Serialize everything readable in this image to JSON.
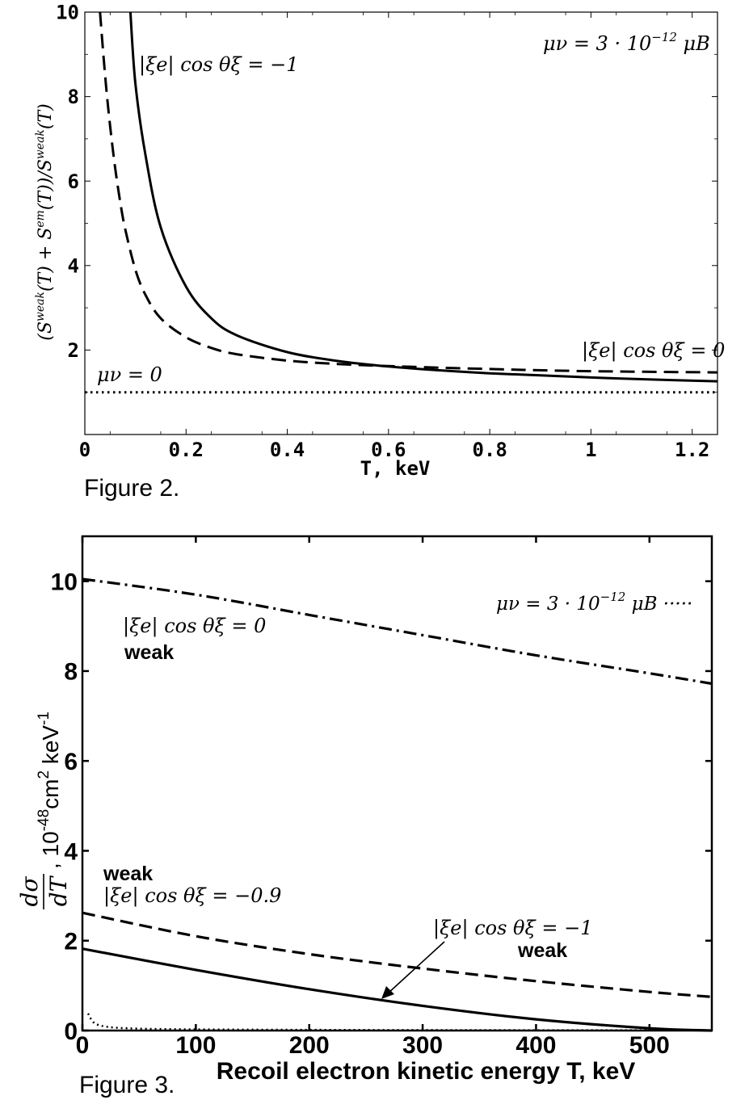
{
  "figures": [
    {
      "caption": "Figure 2.",
      "chart_data": {
        "type": "line",
        "title": "",
        "xlabel": "T, keV",
        "ylabel": "(S^weak(T) + S^em(T))/S^weak(T)",
        "xlim": [
          0,
          1.25
        ],
        "ylim": [
          0,
          10
        ],
        "x_ticks": [
          {
            "v": 0,
            "label": "0"
          },
          {
            "v": 0.2,
            "label": "0.2"
          },
          {
            "v": 0.4,
            "label": "0.4"
          },
          {
            "v": 0.6,
            "label": "0.6"
          },
          {
            "v": 0.8,
            "label": "0.8"
          },
          {
            "v": 1.0,
            "label": "1"
          },
          {
            "v": 1.2,
            "label": "1.2"
          }
        ],
        "y_ticks": [
          {
            "v": 2,
            "label": "2"
          },
          {
            "v": 4,
            "label": "4"
          },
          {
            "v": 6,
            "label": "6"
          },
          {
            "v": 8,
            "label": "8"
          },
          {
            "v": 10,
            "label": "10"
          }
        ],
        "series": [
          {
            "name": "|ξe| cos θξ = −1",
            "style": "solid",
            "x": [
              0.09,
              0.1,
              0.12,
              0.15,
              0.2,
              0.25,
              0.3,
              0.4,
              0.5,
              0.6,
              0.7,
              0.8,
              0.9,
              1.0,
              1.1,
              1.25
            ],
            "y": [
              10.0,
              8.3,
              6.6,
              4.9,
              3.5,
              2.75,
              2.35,
              1.95,
              1.74,
              1.61,
              1.52,
              1.45,
              1.4,
              1.35,
              1.31,
              1.26
            ]
          },
          {
            "name": "|ξe| cos θξ = 0",
            "style": "dashed",
            "x": [
              0.03,
              0.04,
              0.05,
              0.06,
              0.07,
              0.08,
              0.1,
              0.12,
              0.15,
              0.2,
              0.25,
              0.3,
              0.4,
              0.5,
              0.6,
              0.8,
              1.0,
              1.25
            ],
            "y": [
              10.0,
              8.5,
              7.3,
              6.3,
              5.5,
              4.85,
              3.9,
              3.3,
              2.75,
              2.3,
              2.05,
              1.9,
              1.75,
              1.67,
              1.62,
              1.55,
              1.5,
              1.47
            ]
          },
          {
            "name": "μν = 0",
            "style": "dotted",
            "x": [
              0,
              1.25
            ],
            "y": [
              1.0,
              1.0
            ]
          }
        ],
        "annotations": [
          {
            "text": "μν = 3 · 10⁻¹² μB",
            "placement": "top-right"
          },
          {
            "text": "|ξe| cos θξ = −1",
            "placement": "near solid curve, top"
          },
          {
            "text": "|ξe| cos θξ = 0",
            "placement": "near dashed curve, right"
          },
          {
            "text": "μν = 0",
            "placement": "above dotted line, left"
          }
        ]
      }
    },
    {
      "caption": "Figure 3.",
      "chart_data": {
        "type": "line",
        "title": "",
        "xlabel": "Recoil electron kinetic energy T, keV",
        "ylabel": "dσ/dT, 10⁻⁴⁸ cm² keV⁻¹",
        "xlim": [
          0,
          555
        ],
        "ylim": [
          0,
          11
        ],
        "x_ticks": [
          {
            "v": 0,
            "label": "0"
          },
          {
            "v": 100,
            "label": "100"
          },
          {
            "v": 200,
            "label": "200"
          },
          {
            "v": 300,
            "label": "300"
          },
          {
            "v": 400,
            "label": "400"
          },
          {
            "v": 500,
            "label": "500"
          }
        ],
        "y_ticks": [
          {
            "v": 0,
            "label": "0"
          },
          {
            "v": 2,
            "label": "2"
          },
          {
            "v": 4,
            "label": "4"
          },
          {
            "v": 6,
            "label": "6"
          },
          {
            "v": 8,
            "label": "8"
          },
          {
            "v": 10,
            "label": "10"
          }
        ],
        "series": [
          {
            "name": "|ξe| cos θξ = 0 weak",
            "style": "dashdot",
            "x": [
              0,
              100,
              200,
              300,
              400,
              500,
              555
            ],
            "y": [
              10.05,
              9.7,
              9.25,
              8.8,
              8.35,
              7.95,
              7.72
            ]
          },
          {
            "name": "|ξe| cos θξ = −0.9 weak",
            "style": "dashed",
            "x": [
              0,
              100,
              200,
              300,
              400,
              500,
              555
            ],
            "y": [
              2.62,
              2.1,
              1.7,
              1.38,
              1.1,
              0.86,
              0.75
            ]
          },
          {
            "name": "|ξe| cos θξ = −1 weak",
            "style": "solid",
            "x": [
              0,
              100,
              200,
              300,
              400,
              500,
              555
            ],
            "y": [
              1.82,
              1.35,
              0.92,
              0.55,
              0.25,
              0.05,
              0.0
            ]
          },
          {
            "name": "μν = 3 · 10⁻¹² μB",
            "style": "dotted",
            "x": [
              5,
              10,
              20,
              40,
              80,
              150,
              300,
              555
            ],
            "y": [
              0.38,
              0.18,
              0.09,
              0.05,
              0.03,
              0.02,
              0.01,
              0.005
            ]
          }
        ],
        "annotations": [
          {
            "text": "μν = 3 · 10⁻¹² μB",
            "placement": "top-right"
          },
          {
            "text": "|ξe| cos θξ = 0",
            "sub": "weak",
            "placement": "upper-left"
          },
          {
            "text": "|ξe| cos θξ = −0.9",
            "sub": "weak",
            "placement": "left, above dashed curve"
          },
          {
            "text": "|ξe| cos θξ = −1",
            "sub": "weak",
            "placement": "center-right, arrow to solid curve"
          }
        ]
      }
    }
  ],
  "text": {
    "fig2_mu_label": "μν = 3 · 10",
    "fig2_mu_exp": "−12",
    "fig2_mu_suffix": " μB",
    "fig2_solid_label": "|ξe| cos θξ = −1",
    "fig2_dashed_label": "|ξe| cos θξ = 0",
    "fig2_dotted_label": "μν = 0",
    "fig2_ylabel_a": "(S",
    "fig2_ylabel_sup1": "weak",
    "fig2_ylabel_b": "(T) + S",
    "fig2_ylabel_sup2": "em",
    "fig2_ylabel_c": "(T))/S",
    "fig2_ylabel_sup3": "weak",
    "fig2_ylabel_d": "(T)",
    "fig3_mu_label": "μν = 3 · 10",
    "fig3_mu_exp": "−12",
    "fig3_mu_suffix": " μB ·····",
    "fig3_dashdot_label": "|ξe| cos θξ = 0",
    "fig3_dashdot_weak": "weak",
    "fig3_dashed_weak": "weak",
    "fig3_dashed_label": "|ξe| cos θξ = −0.9",
    "fig3_solid_label": "|ξe| cos θξ = −1",
    "fig3_solid_weak": "weak",
    "fig3_ylabel_frac_num": "dσ",
    "fig3_ylabel_frac_den": "dT",
    "fig3_ylabel_a": ", 10",
    "fig3_ylabel_sup1": "-48",
    "fig3_ylabel_b": "cm",
    "fig3_ylabel_sup2": "2",
    "fig3_ylabel_c": " keV",
    "fig3_ylabel_sup3": "-1"
  }
}
